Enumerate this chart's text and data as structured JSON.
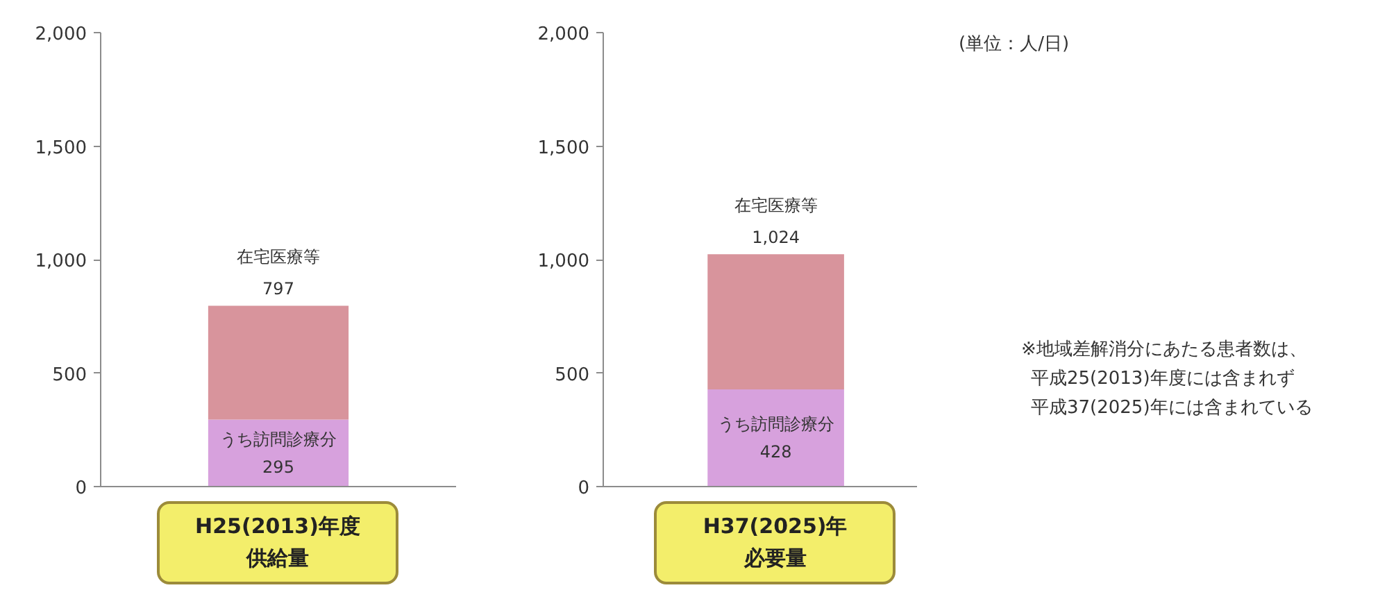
{
  "chart_data": [
    {
      "type": "bar",
      "stacked": true,
      "categories": [
        "H25(2013)年度供給量"
      ],
      "series": [
        {
          "name": "うち訪問診療分",
          "color": "#d7a1dd",
          "values": [
            295
          ],
          "value_labels": [
            "295"
          ]
        },
        {
          "name": "在宅医療等",
          "color": "#d8949c",
          "values": [
            502
          ]
        }
      ],
      "totals": [
        "797"
      ],
      "ylim": [
        0,
        2000
      ],
      "yticks": [
        0,
        500,
        {
          "value": 1000,
          "label": "1,000"
        },
        {
          "value": 1500,
          "label": "1,500"
        },
        {
          "value": 2000,
          "label": "2,000"
        }
      ]
    },
    {
      "type": "bar",
      "stacked": true,
      "categories": [
        "H37(2025)年必要量"
      ],
      "series": [
        {
          "name": "うち訪問診療分",
          "color": "#d7a1dd",
          "values": [
            428
          ],
          "value_labels": [
            "428"
          ]
        },
        {
          "name": "在宅医療等",
          "color": "#d8949c",
          "values": [
            596
          ]
        }
      ],
      "totals": [
        "1,024"
      ],
      "ylim": [
        0,
        2000
      ],
      "yticks": [
        0,
        500,
        {
          "value": 1000,
          "label": "1,000"
        },
        {
          "value": 1500,
          "label": "1,500"
        },
        {
          "value": 2000,
          "label": "2,000"
        }
      ]
    },
    {
      "type": "other",
      "annotations": [
        "(単位：人/日)",
        "※地域差解消分にあたる患者数は、",
        "平成25(2013)年度には含まれず",
        "平成37(2025)年には含まれている"
      ]
    }
  ]
}
